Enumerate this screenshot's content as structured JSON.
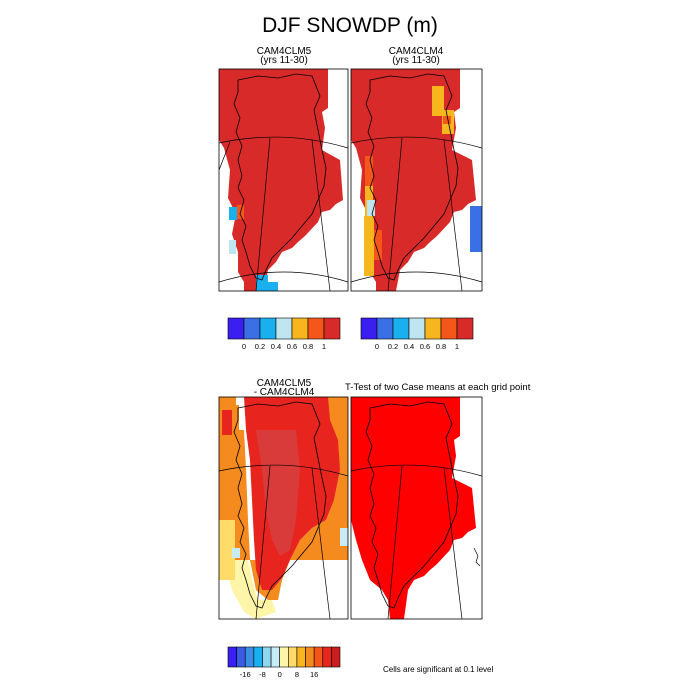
{
  "title": "DJF SNOWDP (m)",
  "panels": [
    {
      "title_line1": "CAM4CLM5",
      "title_line2": "(yrs 11-30)"
    },
    {
      "title_line1": "CAM4CLM4",
      "title_line2": "(yrs 11-30)"
    },
    {
      "title_line1": "CAM4CLM5",
      "title_line2": "- CAM4CLM4"
    },
    {
      "title_line1": "T-Test of two Case means at each grid point",
      "title_line2": ""
    }
  ],
  "significance_note": "Cells are significant at 0.1 level",
  "colors": {
    "border": "#000000",
    "coast": "#000000",
    "grid": "#000000",
    "signif": "#ff0000"
  },
  "chart_data": [
    {
      "type": "heatmap",
      "panel": "CAM4CLM5 (yrs 11-30)",
      "colorbar": {
        "colors": [
          "#3a1ff0",
          "#3b6fe6",
          "#1ab0f0",
          "#bfe6f0",
          "#f7b51e",
          "#f5561a",
          "#d92a2a"
        ],
        "tick_labels": [
          "0",
          "0.2",
          "0.4",
          "0.6",
          "0.8",
          "1"
        ]
      },
      "dominant_value": "> 1"
    },
    {
      "type": "heatmap",
      "panel": "CAM4CLM4 (yrs 11-30)",
      "colorbar": {
        "colors": [
          "#3a1ff0",
          "#3b6fe6",
          "#1ab0f0",
          "#bfe6f0",
          "#f7b51e",
          "#f5561a",
          "#d92a2a"
        ],
        "tick_labels": [
          "0",
          "0.2",
          "0.4",
          "0.6",
          "0.8",
          "1"
        ]
      },
      "dominant_value": "> 1"
    },
    {
      "type": "heatmap",
      "panel": "CAM4CLM5 - CAM4CLM4",
      "colorbar": {
        "colors": [
          "#3a1ff0",
          "#3b5ae6",
          "#3b8ee6",
          "#1ab0f0",
          "#8fd6f0",
          "#c8ecf5",
          "#fff5a8",
          "#ffdc6a",
          "#f7b51e",
          "#f58a1e",
          "#f5561a",
          "#e8241e",
          "#c81e1e"
        ],
        "tick_labels": [
          "-16",
          "-8",
          "0",
          "8",
          "16"
        ]
      }
    },
    {
      "type": "heatmap",
      "panel": "T-Test of two Case means at each grid point",
      "legend": "Cells are significant at 0.1 level"
    }
  ]
}
